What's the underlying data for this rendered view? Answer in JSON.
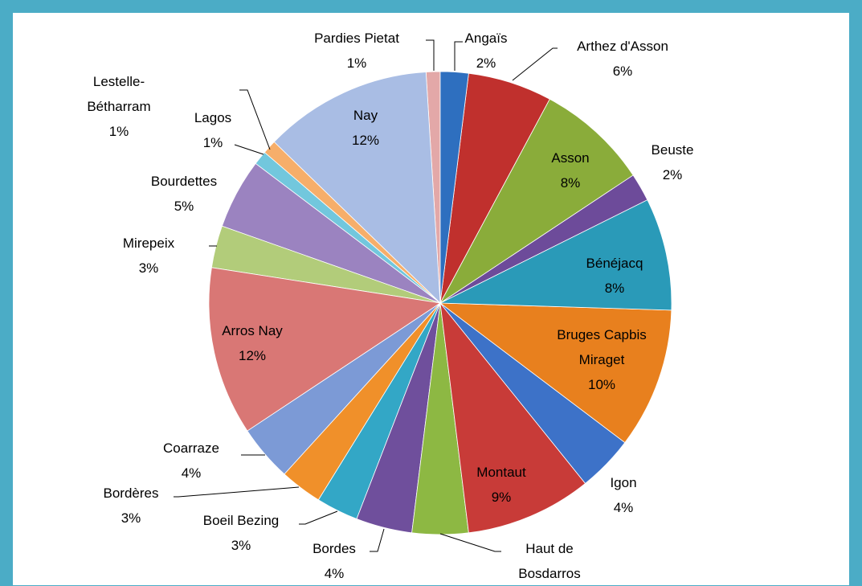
{
  "chart_data": {
    "type": "pie",
    "categories": [
      "Angaïs",
      "Arthez d'Asson",
      "Asson",
      "Beuste",
      "Bénéjacq",
      "Bruges Capbis Miraget",
      "Igon",
      "Montaut",
      "Haut de Bosdarros",
      "Bordes",
      "Boeil Bezing",
      "Bordères",
      "Coarraze",
      "Arros Nay",
      "Mirepeix",
      "Bourdettes",
      "Lagos",
      "Lestelle-Bétharram",
      "Nay",
      "Pardies Pietat"
    ],
    "values": [
      2,
      6,
      8,
      2,
      8,
      10,
      4,
      9,
      4,
      4,
      3,
      3,
      4,
      12,
      3,
      5,
      1,
      1,
      12,
      1
    ],
    "value_labels": [
      "2%",
      "6%",
      "8%",
      "2%",
      "8%",
      "10%",
      "4%",
      "9%",
      null,
      "4%",
      "3%",
      "3%",
      "4%",
      "12%",
      "3%",
      "5%",
      "1%",
      "1%",
      "12%",
      "1%"
    ],
    "colors": [
      "#2e6fbf",
      "#c0302d",
      "#8aac3a",
      "#6d4b9a",
      "#2a9ab8",
      "#e8801e",
      "#3d72c8",
      "#c83b38",
      "#8db843",
      "#6f4f9c",
      "#33a7c6",
      "#f0902a",
      "#7c9ad6",
      "#d97775",
      "#b2cc7a",
      "#9b83c0",
      "#72c7dd",
      "#f6ae6a",
      "#a9bde4",
      "#e3a8a8"
    ]
  }
}
